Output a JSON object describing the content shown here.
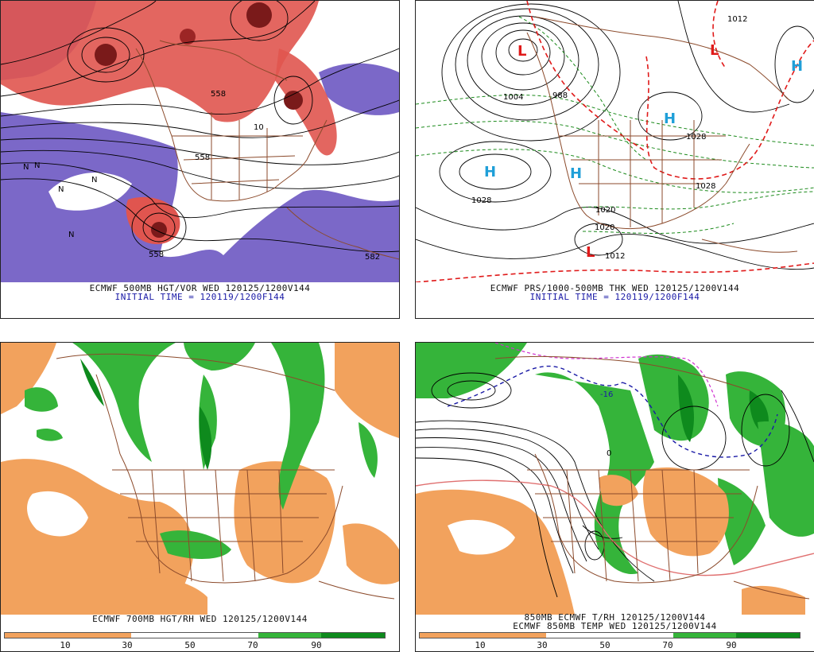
{
  "panels": {
    "p1": {
      "caption1": "ECMWF 500MB HGT/VOR WED 120125/1200V144",
      "caption2": "INITIAL TIME = 120119/1200F144",
      "contour_labels": [
        "558",
        "558",
        "558",
        "582",
        "10",
        "N",
        "N",
        "N",
        "N",
        "N"
      ]
    },
    "p2": {
      "caption1": "ECMWF PRS/1000-500MB THK WED 120125/1200V144",
      "caption2": "INITIAL TIME = 120119/1200F144",
      "pressure_labels": [
        "1004",
        "988",
        "1028",
        "1020",
        "1028",
        "1020",
        "1028",
        "1012",
        "1012"
      ],
      "high_symbol": "H",
      "low_symbol": "L"
    },
    "p3": {
      "caption1": "ECMWF 700MB HGT/RH WED 120125/1200V144",
      "colorbar_labels": [
        "10",
        "30",
        "50",
        "70",
        "90"
      ]
    },
    "p4": {
      "caption1": "850MB ECMWF T/RH 120125/1200V144",
      "caption2": "ECMWF 850MB TEMP WED 120125/1200V144",
      "contour_labels": [
        "0",
        "-16"
      ],
      "colorbar_labels": [
        "10",
        "30",
        "50",
        "70",
        "90"
      ]
    }
  },
  "colors": {
    "vorticity_red": "#d94f4f",
    "vorticity_dark": "#7a1a1a",
    "anticyclonic_purple": "#7b68c8",
    "dry_orange": "#f2a25d",
    "moist_green": "#35b43a",
    "moist_dark_green": "#0e8a1d",
    "coast_brown": "#8b4a2b",
    "thickness_red": "#e01a1a",
    "thickness_green": "#1b8a1b",
    "high_cyan": "#1f9fd8",
    "low_red": "#e01a1a"
  }
}
